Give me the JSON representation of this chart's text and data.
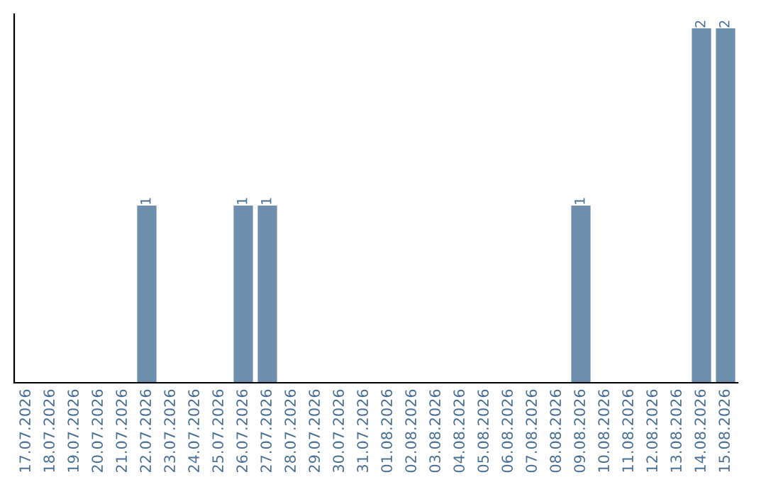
{
  "chart_data": {
    "type": "bar",
    "categories": [
      "17.07.2026",
      "18.07.2026",
      "19.07.2026",
      "20.07.2026",
      "21.07.2026",
      "22.07.2026",
      "23.07.2026",
      "24.07.2026",
      "25.07.2026",
      "26.07.2026",
      "27.07.2026",
      "28.07.2026",
      "29.07.2026",
      "30.07.2026",
      "31.07.2026",
      "01.08.2026",
      "02.08.2026",
      "03.08.2026",
      "04.08.2026",
      "05.08.2026",
      "06.08.2026",
      "07.08.2026",
      "08.08.2026",
      "09.08.2026",
      "10.08.2026",
      "11.08.2026",
      "12.08.2026",
      "13.08.2026",
      "14.08.2026",
      "15.08.2026"
    ],
    "values": [
      0,
      0,
      0,
      0,
      0,
      1,
      0,
      0,
      0,
      1,
      1,
      0,
      0,
      0,
      0,
      0,
      0,
      0,
      0,
      0,
      0,
      0,
      0,
      1,
      0,
      0,
      0,
      0,
      2,
      2
    ],
    "value_labels": [
      null,
      null,
      null,
      null,
      null,
      "1",
      null,
      null,
      null,
      "1",
      "1",
      null,
      null,
      null,
      null,
      null,
      null,
      null,
      null,
      null,
      null,
      null,
      null,
      "1",
      null,
      null,
      null,
      null,
      "2",
      "2"
    ],
    "color": "#6d8fad",
    "tick_labels": "x",
    "grid": false,
    "legend": false
  }
}
